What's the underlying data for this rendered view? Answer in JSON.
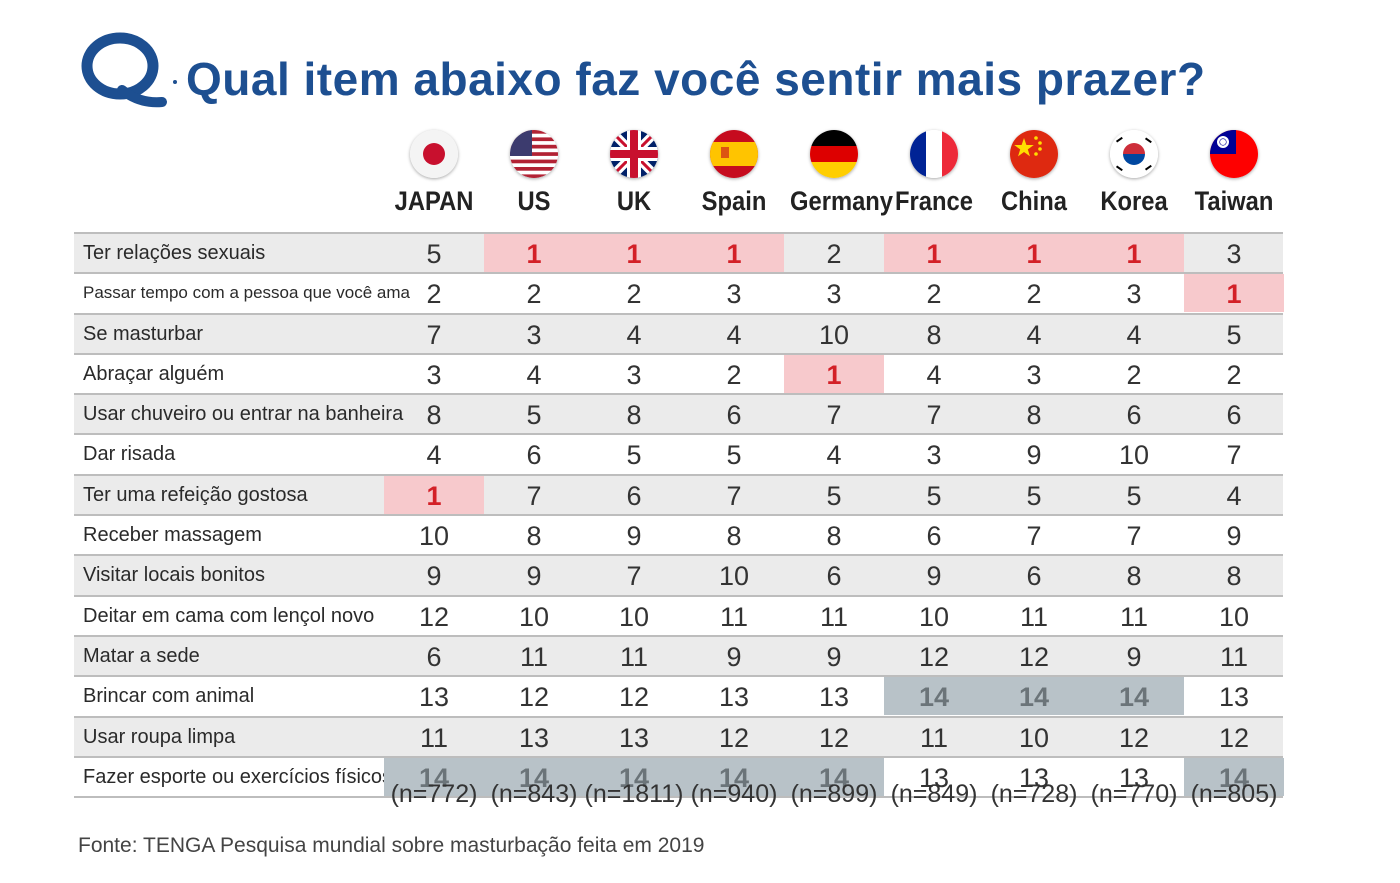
{
  "title": "Qual item abaixo faz você sentir mais prazer?",
  "logo_letter": "Q",
  "colors": {
    "title": "#1d4f91",
    "highlight_top": "#d32027",
    "highlight_top_bg": "#f7c9cc",
    "highlight_bottom_bg": "#b8c2c8"
  },
  "countries": [
    {
      "name": "JAPAN",
      "flag": "japan-flag-icon"
    },
    {
      "name": "US",
      "flag": "us-flag-icon"
    },
    {
      "name": "UK",
      "flag": "uk-flag-icon"
    },
    {
      "name": "Spain",
      "flag": "spain-flag-icon"
    },
    {
      "name": "Germany",
      "flag": "germany-flag-icon"
    },
    {
      "name": "France",
      "flag": "france-flag-icon"
    },
    {
      "name": "China",
      "flag": "china-flag-icon"
    },
    {
      "name": "Korea",
      "flag": "korea-flag-icon"
    },
    {
      "name": "Taiwan",
      "flag": "taiwan-flag-icon"
    }
  ],
  "sample_sizes": [
    "(n=772)",
    "(n=843)",
    "(n=1811)",
    "(n=940)",
    "(n=899)",
    "(n=849)",
    "(n=728)",
    "(n=770)",
    "(n=805)"
  ],
  "source": "Fonte: TENGA Pesquisa mundial sobre masturbação feita em 2019",
  "chart_data": {
    "type": "table",
    "title": "Qual item abaixo faz você sentir mais prazer?",
    "columns": [
      "JAPAN",
      "US",
      "UK",
      "Spain",
      "Germany",
      "France",
      "China",
      "Korea",
      "Taiwan"
    ],
    "rows": [
      {
        "label": "Ter relações sexuais",
        "values": [
          5,
          1,
          1,
          1,
          2,
          1,
          1,
          1,
          3
        ]
      },
      {
        "label": "Passar tempo com a pessoa que você ama",
        "values": [
          2,
          2,
          2,
          3,
          3,
          2,
          2,
          3,
          1
        ]
      },
      {
        "label": "Se masturbar",
        "values": [
          7,
          3,
          4,
          4,
          10,
          8,
          4,
          4,
          5
        ]
      },
      {
        "label": "Abraçar alguém",
        "values": [
          3,
          4,
          3,
          2,
          1,
          4,
          3,
          2,
          2
        ]
      },
      {
        "label": "Usar chuveiro ou entrar na banheira",
        "values": [
          8,
          5,
          8,
          6,
          7,
          7,
          8,
          6,
          6
        ]
      },
      {
        "label": "Dar risada",
        "values": [
          4,
          6,
          5,
          5,
          4,
          3,
          9,
          10,
          7
        ]
      },
      {
        "label": "Ter uma refeição gostosa",
        "values": [
          1,
          7,
          6,
          7,
          5,
          5,
          5,
          5,
          4
        ]
      },
      {
        "label": "Receber massagem",
        "values": [
          10,
          8,
          9,
          8,
          8,
          6,
          7,
          7,
          9
        ]
      },
      {
        "label": "Visitar locais bonitos",
        "values": [
          9,
          9,
          7,
          10,
          6,
          9,
          6,
          8,
          8
        ]
      },
      {
        "label": "Deitar em cama com lençol novo",
        "values": [
          12,
          10,
          10,
          11,
          11,
          10,
          11,
          11,
          10
        ]
      },
      {
        "label": "Matar a sede",
        "values": [
          6,
          11,
          11,
          9,
          9,
          12,
          12,
          9,
          11
        ]
      },
      {
        "label": "Brincar com animal",
        "values": [
          13,
          12,
          12,
          13,
          13,
          14,
          14,
          14,
          13
        ]
      },
      {
        "label": "Usar roupa limpa",
        "values": [
          11,
          13,
          13,
          12,
          12,
          11,
          10,
          12,
          12
        ]
      },
      {
        "label": "Fazer esporte ou exercícios físicos",
        "values": [
          14,
          14,
          14,
          14,
          14,
          13,
          13,
          13,
          14
        ]
      }
    ],
    "sample_sizes": [
      772,
      843,
      1811,
      940,
      899,
      849,
      728,
      770,
      805
    ]
  }
}
